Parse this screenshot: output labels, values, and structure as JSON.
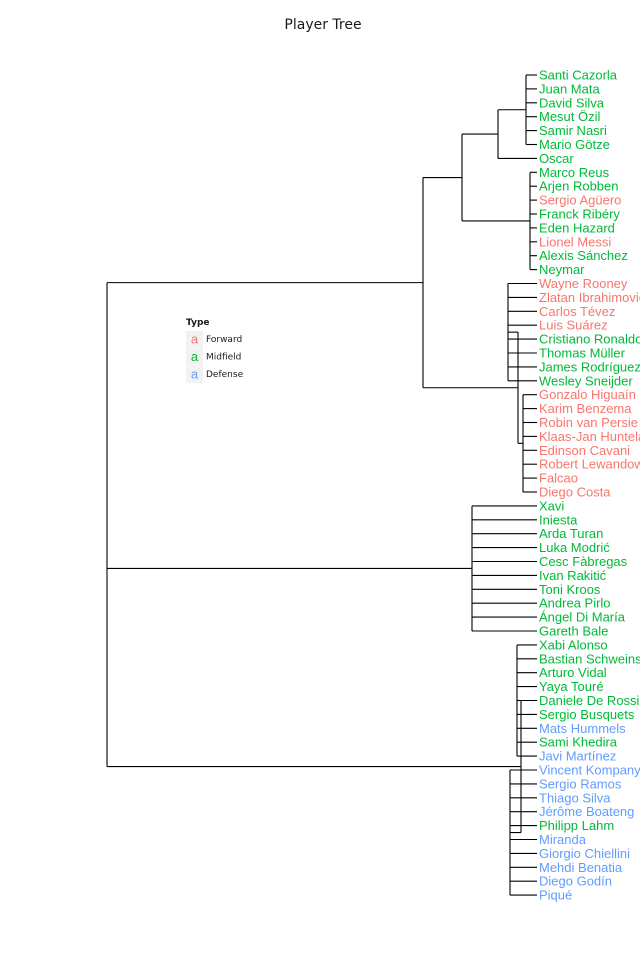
{
  "title": "Player Tree",
  "legend": {
    "title": "Type",
    "key_glyph": "a",
    "items": [
      {
        "label": "Forward",
        "color": "#F8766D"
      },
      {
        "label": "Midfield",
        "color": "#00BA38"
      },
      {
        "label": "Defense",
        "color": "#619CFF"
      }
    ]
  },
  "tree": {
    "children": [
      {
        "children": [
          {
            "children": [
              {
                "children": [
                  {
                    "children": [
                      {
                        "leaf": "Santi Cazorla",
                        "type": "Midfield"
                      },
                      {
                        "leaf": "Juan Mata",
                        "type": "Midfield"
                      },
                      {
                        "leaf": "David Silva",
                        "type": "Midfield"
                      },
                      {
                        "leaf": "Mesut Özil",
                        "type": "Midfield"
                      },
                      {
                        "leaf": "Samir Nasri",
                        "type": "Midfield"
                      },
                      {
                        "leaf": "Mario Götze",
                        "type": "Midfield"
                      }
                    ]
                  },
                  {
                    "leaf": "Oscar",
                    "type": "Midfield"
                  }
                ]
              },
              {
                "children": [
                  {
                    "leaf": "Marco Reus",
                    "type": "Midfield"
                  },
                  {
                    "leaf": "Arjen Robben",
                    "type": "Midfield"
                  },
                  {
                    "leaf": "Sergio Agüero",
                    "type": "Forward"
                  },
                  {
                    "leaf": "Franck Ribéry",
                    "type": "Midfield"
                  },
                  {
                    "leaf": "Eden Hazard",
                    "type": "Midfield"
                  },
                  {
                    "leaf": "Lionel Messi",
                    "type": "Forward"
                  },
                  {
                    "leaf": "Alexis Sánchez",
                    "type": "Midfield"
                  },
                  {
                    "leaf": "Neymar",
                    "type": "Midfield"
                  }
                ]
              }
            ]
          },
          {
            "children": [
              {
                "children": [
                  {
                    "leaf": "Wayne Rooney",
                    "type": "Forward"
                  },
                  {
                    "leaf": "Zlatan Ibrahimović",
                    "type": "Forward"
                  },
                  {
                    "leaf": "Carlos Tévez",
                    "type": "Forward"
                  },
                  {
                    "leaf": "Luis Suárez",
                    "type": "Forward"
                  },
                  {
                    "leaf": "Cristiano Ronaldo",
                    "type": "Midfield"
                  },
                  {
                    "leaf": "Thomas Müller",
                    "type": "Midfield"
                  },
                  {
                    "leaf": "James Rodríguez",
                    "type": "Midfield"
                  },
                  {
                    "leaf": "Wesley Sneijder",
                    "type": "Midfield"
                  }
                ]
              },
              {
                "children": [
                  {
                    "leaf": "Gonzalo Higuaín",
                    "type": "Forward"
                  },
                  {
                    "leaf": "Karim Benzema",
                    "type": "Forward"
                  },
                  {
                    "leaf": "Robin van Persie",
                    "type": "Forward"
                  },
                  {
                    "leaf": "Klaas-Jan Huntelaar",
                    "type": "Forward"
                  },
                  {
                    "leaf": "Edinson Cavani",
                    "type": "Forward"
                  },
                  {
                    "leaf": "Robert Lewandowski",
                    "type": "Forward"
                  },
                  {
                    "leaf": "Falcao",
                    "type": "Forward"
                  },
                  {
                    "leaf": "Diego Costa",
                    "type": "Forward"
                  }
                ]
              }
            ]
          }
        ]
      },
      {
        "children": [
          {
            "leaf": "Xavi",
            "type": "Midfield"
          },
          {
            "leaf": "Iniesta",
            "type": "Midfield"
          },
          {
            "leaf": "Arda Turan",
            "type": "Midfield"
          },
          {
            "leaf": "Luka Modrić",
            "type": "Midfield"
          },
          {
            "leaf": "Cesc Fàbregas",
            "type": "Midfield"
          },
          {
            "leaf": "Ivan Rakitić",
            "type": "Midfield"
          },
          {
            "leaf": "Toni Kroos",
            "type": "Midfield"
          },
          {
            "leaf": "Andrea Pirlo",
            "type": "Midfield"
          },
          {
            "leaf": "Ángel Di María",
            "type": "Midfield"
          },
          {
            "leaf": "Gareth Bale",
            "type": "Midfield"
          }
        ]
      },
      {
        "children": [
          {
            "children": [
              {
                "leaf": "Xabi Alonso",
                "type": "Midfield"
              },
              {
                "leaf": "Bastian Schweinsteiger",
                "type": "Midfield"
              },
              {
                "leaf": "Arturo Vidal",
                "type": "Midfield"
              },
              {
                "leaf": "Yaya Touré",
                "type": "Midfield"
              },
              {
                "leaf": "Daniele De Rossi",
                "type": "Midfield"
              },
              {
                "leaf": "Sergio Busquets",
                "type": "Midfield"
              },
              {
                "leaf": "Mats Hummels",
                "type": "Defense"
              },
              {
                "leaf": "Sami Khedira",
                "type": "Midfield"
              },
              {
                "leaf": "Javi Martínez",
                "type": "Defense"
              }
            ]
          },
          {
            "children": [
              {
                "leaf": "Vincent Kompany",
                "type": "Defense"
              },
              {
                "leaf": "Sergio Ramos",
                "type": "Defense"
              },
              {
                "leaf": "Thiago Silva",
                "type": "Defense"
              },
              {
                "leaf": "Jérôme Boateng",
                "type": "Defense"
              },
              {
                "leaf": "Philipp Lahm",
                "type": "Midfield"
              },
              {
                "leaf": "Miranda",
                "type": "Defense"
              },
              {
                "leaf": "Giorgio Chiellini",
                "type": "Defense"
              },
              {
                "leaf": "Mehdi Benatia",
                "type": "Defense"
              },
              {
                "leaf": "Diego Godín",
                "type": "Defense"
              },
              {
                "leaf": "Piqué",
                "type": "Defense"
              }
            ]
          }
        ]
      }
    ]
  }
}
